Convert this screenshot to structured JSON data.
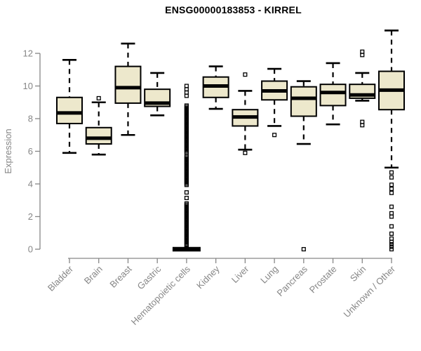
{
  "chart_data": {
    "type": "boxplot",
    "title": "ENSG00000183853 - KIRREL",
    "ylabel": "Expression",
    "xlabel": "",
    "ylim": [
      0,
      13.5
    ],
    "yticks": [
      0,
      2,
      4,
      6,
      8,
      10,
      12
    ],
    "grid": false,
    "legend": "none",
    "colors": {
      "box_fill": "#EDE8CC",
      "box_stroke": "#000000",
      "median": "#000000",
      "whisker": "#000000",
      "axis": "#868686",
      "tick_label": "#868686",
      "title": "#000000",
      "background": "#FFFFFF"
    },
    "categories": [
      "Bladder",
      "Brain",
      "Breast",
      "Gastric",
      "Hematopoietic cells",
      "Kidney",
      "Liver",
      "Lung",
      "Pancreas",
      "Prostate",
      "Skin",
      "Unknown / Other"
    ],
    "series": [
      {
        "category": "Bladder",
        "whisker_low": 5.9,
        "q1": 7.7,
        "median": 8.35,
        "q3": 9.3,
        "whisker_high": 11.6,
        "outliers": []
      },
      {
        "category": "Brain",
        "whisker_low": 5.8,
        "q1": 6.45,
        "median": 6.8,
        "q3": 7.45,
        "whisker_high": 9.0,
        "outliers": [
          9.25
        ]
      },
      {
        "category": "Breast",
        "whisker_low": 7.0,
        "q1": 8.95,
        "median": 9.9,
        "q3": 11.2,
        "whisker_high": 12.6,
        "outliers": []
      },
      {
        "category": "Gastric",
        "whisker_low": 8.2,
        "q1": 8.75,
        "median": 8.95,
        "q3": 9.8,
        "whisker_high": 10.8,
        "outliers": []
      },
      {
        "category": "Hematopoietic cells",
        "whisker_low": 0,
        "q1": 0,
        "median": 0,
        "q3": 0,
        "whisker_high": 0,
        "outliers": [
          10.0,
          9.8,
          9.6,
          9.4,
          8.8,
          8.72,
          8.64,
          8.56,
          8.48,
          8.4,
          8.32,
          8.24,
          8.16,
          8.08,
          8.0,
          7.92,
          7.84,
          7.76,
          7.68,
          7.6,
          7.52,
          7.44,
          7.36,
          7.28,
          7.2,
          7.12,
          7.04,
          6.96,
          6.88,
          6.8,
          6.72,
          6.64,
          6.56,
          6.48,
          6.4,
          6.32,
          6.24,
          6.16,
          6.08,
          6.0,
          5.92,
          5.7,
          5.62,
          5.54,
          5.46,
          5.38,
          5.3,
          5.22,
          5.14,
          5.06,
          4.98,
          4.9,
          4.82,
          4.74,
          4.66,
          4.58,
          4.5,
          4.42,
          4.34,
          4.26,
          4.18,
          4.1,
          4.02,
          3.94,
          3.48,
          3.14,
          2.8,
          2.72,
          2.64,
          2.56,
          2.48,
          2.4,
          2.32,
          2.24,
          2.16,
          2.08,
          2.0,
          1.92,
          1.84,
          1.76,
          1.68,
          1.6,
          1.52,
          1.44,
          1.36,
          1.28,
          1.2,
          1.12,
          1.04,
          0.96,
          0.88,
          0.8,
          0.72,
          0.64,
          0.56,
          0.48,
          0.4,
          0.32,
          0.24,
          0.1,
          0.05
        ]
      },
      {
        "category": "Kidney",
        "whisker_low": 8.6,
        "q1": 9.3,
        "median": 10.0,
        "q3": 10.55,
        "whisker_high": 11.2,
        "outliers": []
      },
      {
        "category": "Liver",
        "whisker_low": 6.1,
        "q1": 7.55,
        "median": 8.1,
        "q3": 8.55,
        "whisker_high": 9.7,
        "outliers": [
          10.7,
          5.9
        ]
      },
      {
        "category": "Lung",
        "whisker_low": 7.55,
        "q1": 9.15,
        "median": 9.7,
        "q3": 10.3,
        "whisker_high": 11.05,
        "outliers": [
          7.0
        ]
      },
      {
        "category": "Pancreas",
        "whisker_low": 6.45,
        "q1": 8.15,
        "median": 9.25,
        "q3": 9.95,
        "whisker_high": 10.3,
        "outliers": [
          0.0
        ]
      },
      {
        "category": "Prostate",
        "whisker_low": 7.65,
        "q1": 8.8,
        "median": 9.6,
        "q3": 10.1,
        "whisker_high": 11.4,
        "outliers": []
      },
      {
        "category": "Skin",
        "whisker_low": 9.1,
        "q1": 9.25,
        "median": 9.45,
        "q3": 10.1,
        "whisker_high": 10.8,
        "outliers": [
          12.1,
          11.9,
          7.8,
          7.6
        ]
      },
      {
        "category": "Unknown / Other",
        "whisker_low": 5.0,
        "q1": 8.55,
        "median": 9.75,
        "q3": 10.9,
        "whisker_high": 13.4,
        "outliers": [
          4.7,
          4.4,
          3.95,
          3.7,
          3.45,
          2.6,
          2.2,
          2.0,
          1.4,
          0.95,
          0.65,
          0.45,
          0.3,
          0.15,
          0.0
        ]
      }
    ]
  }
}
